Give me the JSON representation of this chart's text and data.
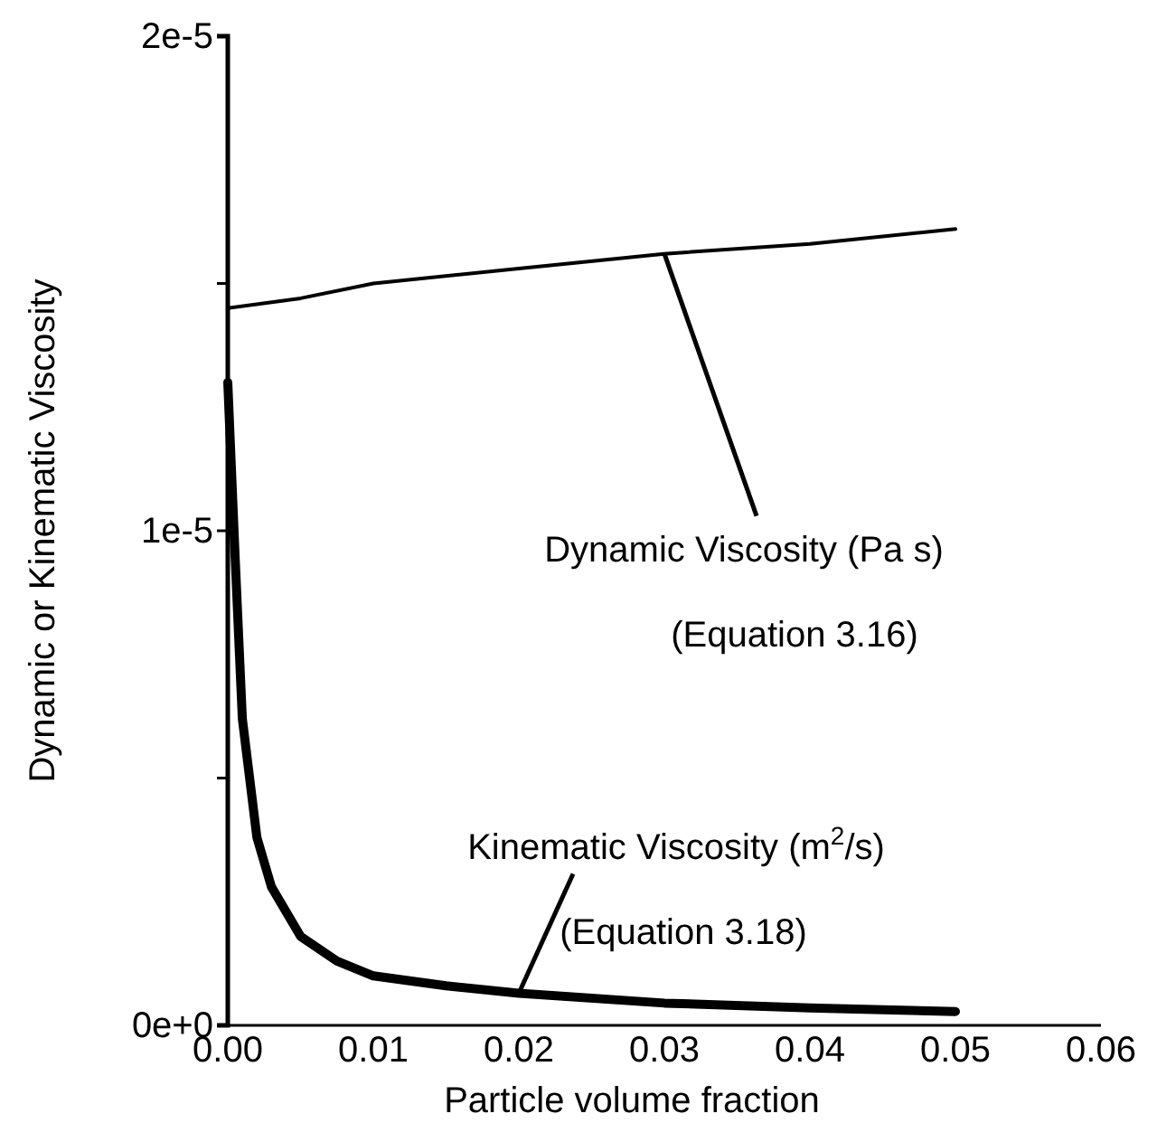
{
  "chart_data": {
    "type": "line",
    "xlabel": "Particle volume fraction",
    "ylabel": "Dynamic or Kinematic Viscosity",
    "x": [
      0,
      0.0005,
      0.001,
      0.002,
      0.003,
      0.005,
      0.0075,
      0.01,
      0.015,
      0.02,
      0.03,
      0.04,
      0.05
    ],
    "series": [
      {
        "color": "#000000",
        "x": [
          0,
          0.005,
          0.01,
          0.02,
          0.03,
          0.04,
          0.05
        ],
        "values": [
          1.45e-05,
          1.47e-05,
          1.5e-05,
          1.53e-05,
          1.56e-05,
          1.58e-05,
          1.61e-05
        ]
      },
      {
        "color": "#000000",
        "values": [
          1.3e-05,
          9.5e-06,
          6.2e-06,
          3.8e-06,
          2.8e-06,
          1.8e-06,
          1.3e-06,
          1e-06,
          8e-07,
          6.5e-07,
          4.5e-07,
          3.5e-07,
          2.8e-07
        ]
      }
    ],
    "xlim": [
      0,
      0.06
    ],
    "xticks": [
      {
        "value": 0,
        "label": "0.00"
      },
      {
        "value": 0.01,
        "label": "0.01"
      },
      {
        "value": 0.02,
        "label": "0.02"
      },
      {
        "value": 0.03,
        "label": "0.03"
      },
      {
        "value": 0.04,
        "label": "0.04"
      },
      {
        "value": 0.05,
        "label": "0.05"
      },
      {
        "value": 0.06,
        "label": "0.06"
      }
    ],
    "ylim": [
      0,
      2e-05
    ],
    "yticks": [
      {
        "value": 0,
        "label": "0e+0"
      },
      {
        "value": 5e-06,
        "label": null
      },
      {
        "value": 1e-05,
        "label": "1e-5"
      },
      {
        "value": 1.5e-05,
        "label": null
      },
      {
        "value": 2e-05,
        "label": "2e-5"
      }
    ],
    "annotations": [
      {
        "text": "Dynamic Viscosity (Pa s)",
        "x": 0.03,
        "y": 1.56e-05
      },
      "(Equation 3.16)",
      {
        "text": "Kinematic Viscosity (m$^{2}$/s)",
        "x": 0.02,
        "y": 6.5e-07
      },
      "(Equation 3.18)"
    ],
    "grid": false,
    "marker": "none",
    "line_style": "solid"
  }
}
